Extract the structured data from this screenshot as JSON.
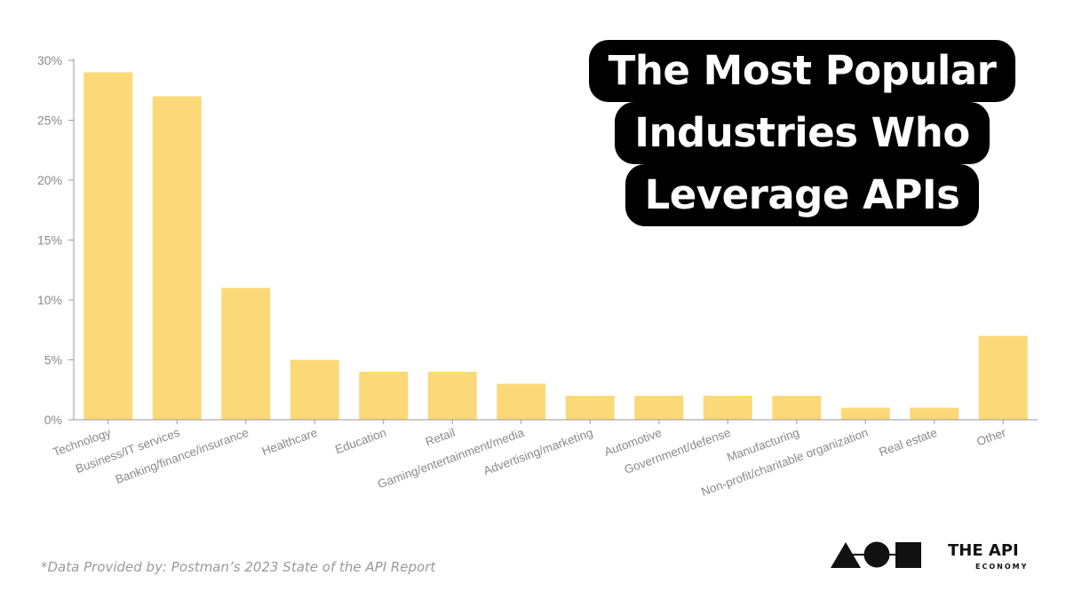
{
  "title_lines": [
    "The Most Popular",
    "Industries Who",
    "Leverage APIs"
  ],
  "footnote": "*Data Provided by: Postman’s 2023 State of the API Report",
  "brand": {
    "name": "THE API",
    "sub": "ECONOMY",
    "logo_icon": "triangle-circle-square-logo"
  },
  "colors": {
    "bar": "#fbd978",
    "axis": "#9a9a9a",
    "tick_text": "#8a8a8a",
    "title_bg": "#000000",
    "title_text": "#ffffff"
  },
  "chart_data": {
    "type": "bar",
    "categories": [
      "Technology",
      "Business/IT services",
      "Banking/finance/insurance",
      "Healthcare",
      "Education",
      "Retail",
      "Gaming/entertainment/media",
      "Advertising/marketing",
      "Automotive",
      "Government/defense",
      "Manufacturing",
      "Non-profit/charitable organization",
      "Real estate",
      "Other"
    ],
    "values": [
      29,
      27,
      11,
      5,
      4,
      4,
      3,
      2,
      2,
      2,
      2,
      1,
      1,
      7
    ],
    "y_ticks": [
      0,
      5,
      10,
      15,
      20,
      25,
      30
    ],
    "y_tick_labels": [
      "0%",
      "5%",
      "10%",
      "15%",
      "20%",
      "25%",
      "30%"
    ],
    "ylim": [
      0,
      30
    ],
    "grid": false,
    "title": "The Most Popular Industries Who Leverage APIs"
  }
}
